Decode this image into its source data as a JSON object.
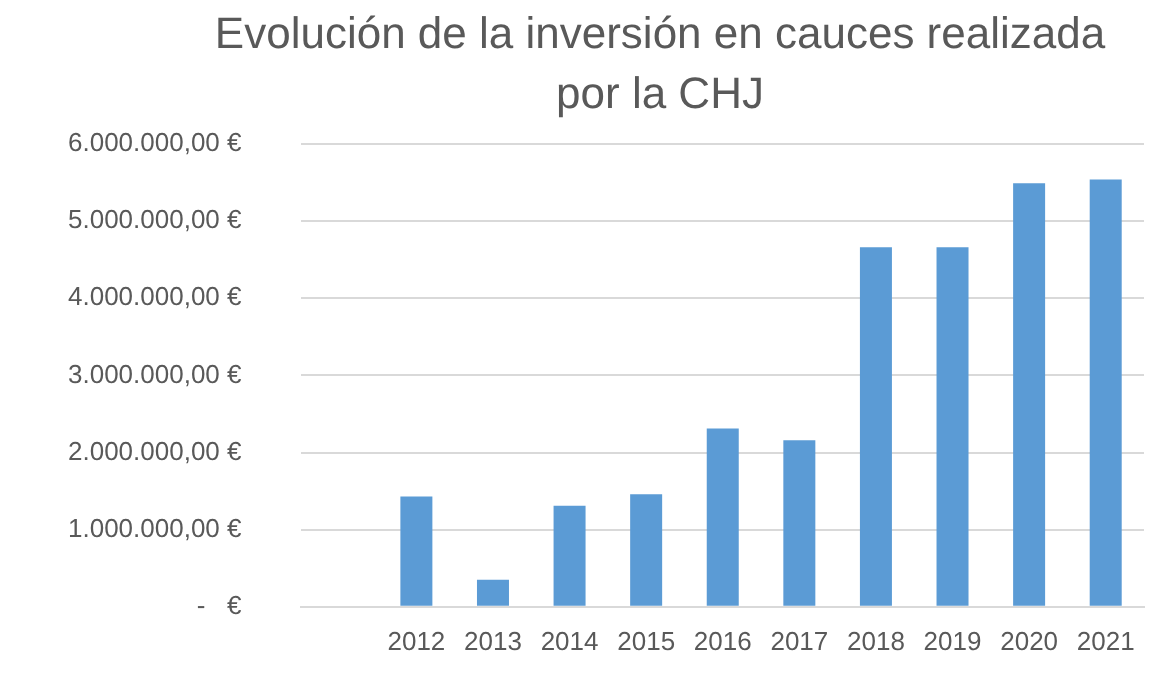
{
  "chart_data": {
    "type": "bar",
    "title": "Evolución de la inversión en cauces realizada por la CHJ",
    "categories": [
      null,
      "2012",
      "2013",
      "2014",
      "2015",
      "2016",
      "2017",
      "2018",
      "2019",
      "2020",
      "2021"
    ],
    "values": [
      null,
      1430000,
      350000,
      1310000,
      1460000,
      2310000,
      2160000,
      4660000,
      4660000,
      5490000,
      5540000
    ],
    "color": "#5b9bd5",
    "ylim": [
      0,
      6000000
    ],
    "yticks": [
      {
        "value": 0,
        "label": "-   €"
      },
      {
        "value": 1000000,
        "label": "1.000.000,00 €"
      },
      {
        "value": 2000000,
        "label": "2.000.000,00 €"
      },
      {
        "value": 3000000,
        "label": "3.000.000,00 €"
      },
      {
        "value": 4000000,
        "label": "4.000.000,00 €"
      },
      {
        "value": 5000000,
        "label": "5.000.000,00 €"
      },
      {
        "value": 6000000,
        "label": "6.000.000,00 €"
      }
    ],
    "grid": "y"
  }
}
